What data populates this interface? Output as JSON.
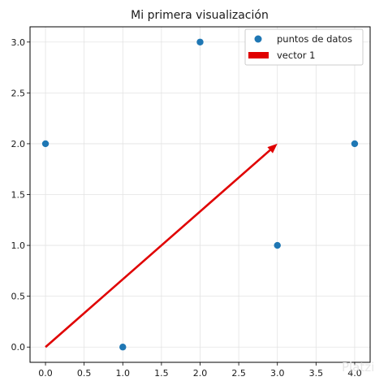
{
  "chart_data": {
    "type": "scatter",
    "title": "Mi primera visualización",
    "xlabel": "",
    "ylabel": "",
    "xlim": [
      -0.2,
      4.2
    ],
    "ylim": [
      -0.15,
      3.15
    ],
    "xticks": [
      "0.0",
      "0.5",
      "1.0",
      "1.5",
      "2.0",
      "2.5",
      "3.0",
      "3.5",
      "4.0"
    ],
    "yticks": [
      "0.0",
      "0.5",
      "1.0",
      "1.5",
      "2.0",
      "2.5",
      "3.0"
    ],
    "grid": true,
    "legend_position": "top-right",
    "series": [
      {
        "name": "puntos de datos",
        "type": "scatter",
        "color": "#1f77b4",
        "x": [
          0,
          1,
          2,
          3,
          4
        ],
        "y": [
          2,
          0,
          3,
          1,
          2
        ]
      },
      {
        "name": "vector 1",
        "type": "arrow",
        "color": "#e00000",
        "start": [
          0,
          0
        ],
        "end": [
          3,
          2
        ]
      }
    ]
  },
  "watermark": {
    "text": "Platzi"
  }
}
